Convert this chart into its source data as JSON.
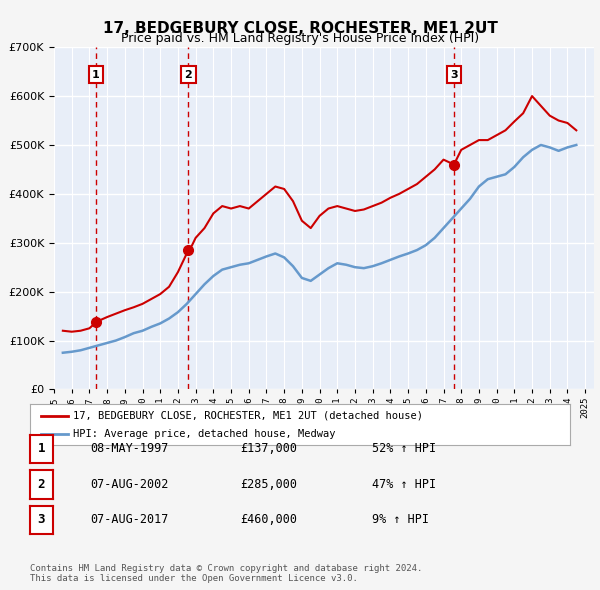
{
  "title": "17, BEDGEBURY CLOSE, ROCHESTER, ME1 2UT",
  "subtitle": "Price paid vs. HM Land Registry's House Price Index (HPI)",
  "xlabel": "",
  "ylabel": "",
  "ylim": [
    0,
    700000
  ],
  "yticks": [
    0,
    100000,
    200000,
    300000,
    400000,
    500000,
    600000,
    700000
  ],
  "ytick_labels": [
    "£0",
    "£100K",
    "£200K",
    "£300K",
    "£400K",
    "£500K",
    "£600K",
    "£700K"
  ],
  "xlim_start": 1995.0,
  "xlim_end": 2025.5,
  "bg_color": "#f0f4ff",
  "plot_bg_color": "#e8eef8",
  "grid_color": "#ffffff",
  "sale_color": "#cc0000",
  "hpi_color": "#6699cc",
  "title_fontsize": 11,
  "subtitle_fontsize": 10,
  "legend_label_sale": "17, BEDGEBURY CLOSE, ROCHESTER, ME1 2UT (detached house)",
  "legend_label_hpi": "HPI: Average price, detached house, Medway",
  "sales": [
    {
      "date": 1997.37,
      "price": 137000,
      "label": "1"
    },
    {
      "date": 2002.59,
      "price": 285000,
      "label": "2"
    },
    {
      "date": 2017.59,
      "price": 460000,
      "label": "3"
    }
  ],
  "sale_vlines": [
    1997.37,
    2002.59,
    2017.59
  ],
  "table_rows": [
    {
      "num": "1",
      "date": "08-MAY-1997",
      "price": "£137,000",
      "hpi": "52% ↑ HPI"
    },
    {
      "num": "2",
      "date": "07-AUG-2002",
      "price": "£285,000",
      "hpi": "47% ↑ HPI"
    },
    {
      "num": "3",
      "date": "07-AUG-2017",
      "price": "£460,000",
      "hpi": "9% ↑ HPI"
    }
  ],
  "footer": "Contains HM Land Registry data © Crown copyright and database right 2024.\nThis data is licensed under the Open Government Licence v3.0.",
  "hpi_data": {
    "years": [
      1995.5,
      1996.0,
      1996.5,
      1997.0,
      1997.5,
      1998.0,
      1998.5,
      1999.0,
      1999.5,
      2000.0,
      2000.5,
      2001.0,
      2001.5,
      2002.0,
      2002.5,
      2003.0,
      2003.5,
      2004.0,
      2004.5,
      2005.0,
      2005.5,
      2006.0,
      2006.5,
      2007.0,
      2007.5,
      2008.0,
      2008.5,
      2009.0,
      2009.5,
      2010.0,
      2010.5,
      2011.0,
      2011.5,
      2012.0,
      2012.5,
      2013.0,
      2013.5,
      2014.0,
      2014.5,
      2015.0,
      2015.5,
      2016.0,
      2016.5,
      2017.0,
      2017.5,
      2018.0,
      2018.5,
      2019.0,
      2019.5,
      2020.0,
      2020.5,
      2021.0,
      2021.5,
      2022.0,
      2022.5,
      2023.0,
      2023.5,
      2024.0,
      2024.5
    ],
    "values": [
      75000,
      77000,
      80000,
      85000,
      90000,
      95000,
      100000,
      107000,
      115000,
      120000,
      128000,
      135000,
      145000,
      158000,
      175000,
      195000,
      215000,
      232000,
      245000,
      250000,
      255000,
      258000,
      265000,
      272000,
      278000,
      270000,
      252000,
      228000,
      222000,
      235000,
      248000,
      258000,
      255000,
      250000,
      248000,
      252000,
      258000,
      265000,
      272000,
      278000,
      285000,
      295000,
      310000,
      330000,
      350000,
      370000,
      390000,
      415000,
      430000,
      435000,
      440000,
      455000,
      475000,
      490000,
      500000,
      495000,
      488000,
      495000,
      500000
    ]
  },
  "sale_line_data": {
    "years": [
      1995.5,
      1996.0,
      1996.5,
      1997.0,
      1997.37,
      1997.5,
      1998.0,
      1998.5,
      1999.0,
      1999.5,
      2000.0,
      2000.5,
      2001.0,
      2001.5,
      2002.0,
      2002.59,
      2002.8,
      2003.0,
      2003.5,
      2004.0,
      2004.5,
      2005.0,
      2005.5,
      2006.0,
      2006.5,
      2007.0,
      2007.5,
      2008.0,
      2008.5,
      2009.0,
      2009.5,
      2010.0,
      2010.5,
      2011.0,
      2011.5,
      2012.0,
      2012.5,
      2013.0,
      2013.5,
      2014.0,
      2014.5,
      2015.0,
      2015.5,
      2016.0,
      2016.5,
      2017.0,
      2017.59,
      2018.0,
      2018.5,
      2019.0,
      2019.5,
      2020.0,
      2020.5,
      2021.0,
      2021.5,
      2022.0,
      2022.5,
      2023.0,
      2023.5,
      2024.0,
      2024.5
    ],
    "values": [
      120000,
      118000,
      120000,
      125000,
      137000,
      140000,
      148000,
      155000,
      162000,
      168000,
      175000,
      185000,
      195000,
      210000,
      240000,
      285000,
      295000,
      310000,
      330000,
      360000,
      375000,
      370000,
      375000,
      370000,
      385000,
      400000,
      415000,
      410000,
      385000,
      345000,
      330000,
      355000,
      370000,
      375000,
      370000,
      365000,
      368000,
      375000,
      382000,
      392000,
      400000,
      410000,
      420000,
      435000,
      450000,
      470000,
      460000,
      490000,
      500000,
      510000,
      510000,
      520000,
      530000,
      548000,
      565000,
      600000,
      580000,
      560000,
      550000,
      545000,
      530000
    ]
  }
}
